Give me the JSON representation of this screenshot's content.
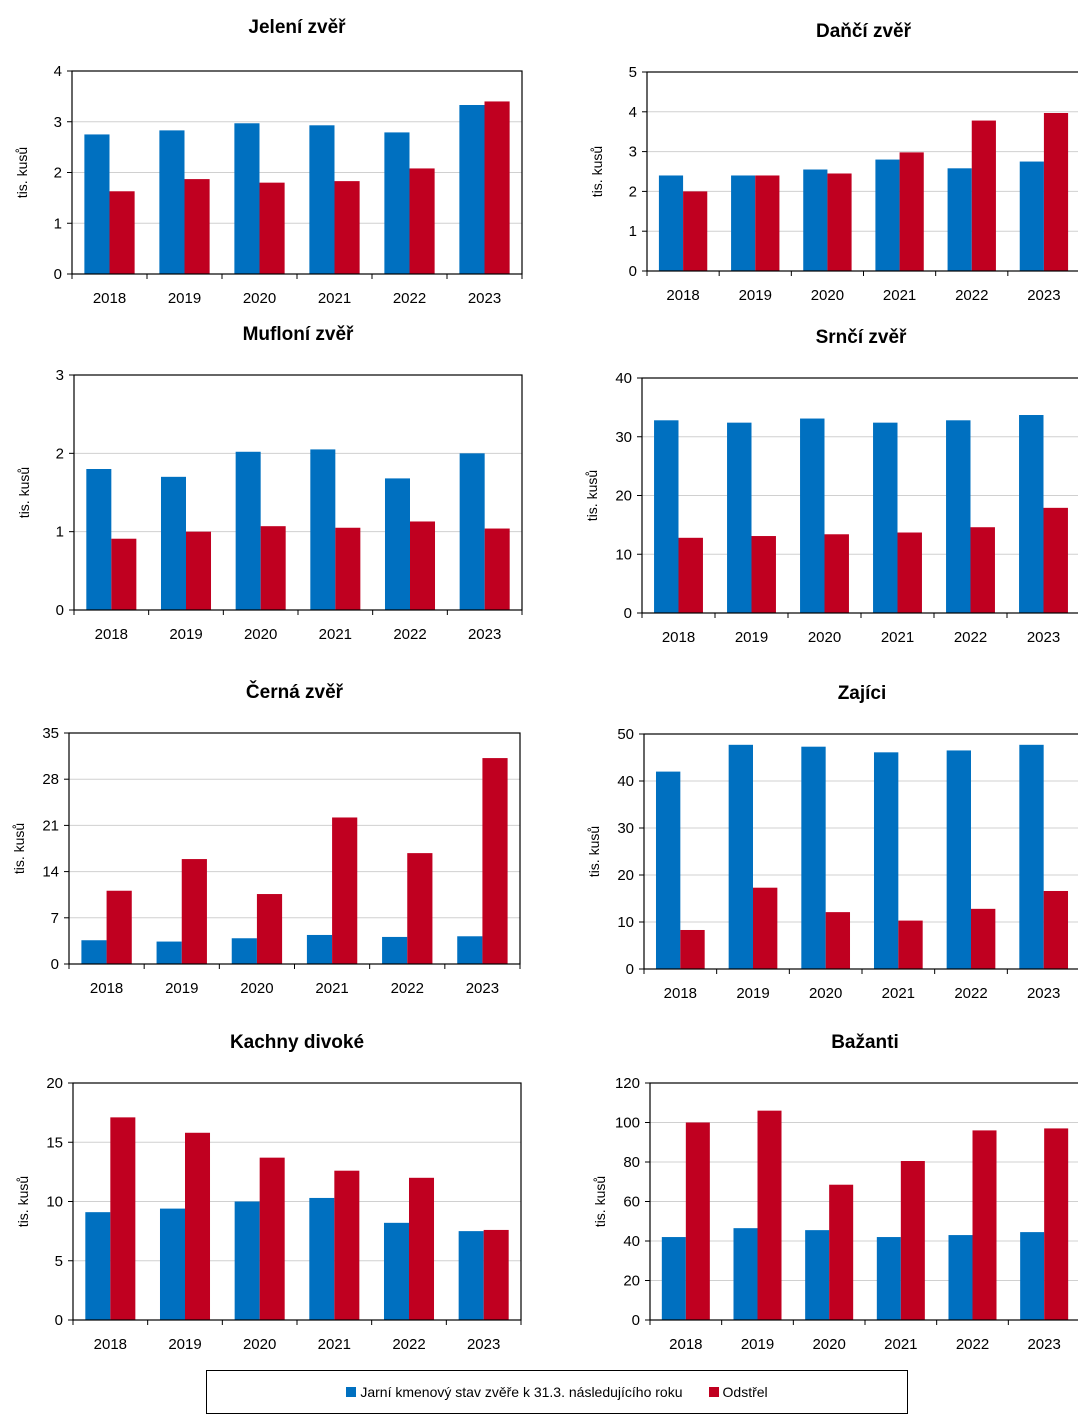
{
  "colors": {
    "series1": "#0070C0",
    "series2": "#C00020"
  },
  "legend": {
    "series1": "Jarní kmenový stav zvěře k 31.3. následujícího roku",
    "series2": "Odstřel"
  },
  "chart_data": [
    {
      "type": "bar",
      "title": "Jelení zvěř",
      "ylabel": "tis. kusů",
      "categories": [
        "2018",
        "2019",
        "2020",
        "2021",
        "2022",
        "2023"
      ],
      "ylim": [
        0,
        4
      ],
      "yticks": [
        0,
        1,
        2,
        3,
        4
      ],
      "series": [
        {
          "name": "Jarní kmenový stav zvěře k 31.3. následujícího roku",
          "values": [
            2.75,
            2.83,
            2.97,
            2.93,
            2.79,
            3.33
          ]
        },
        {
          "name": "Odstřel",
          "values": [
            1.63,
            1.87,
            1.8,
            1.83,
            2.08,
            3.4
          ]
        }
      ]
    },
    {
      "type": "bar",
      "title": "Daňčí zvěř",
      "ylabel": "tis. kusů",
      "categories": [
        "2018",
        "2019",
        "2020",
        "2021",
        "2022",
        "2023"
      ],
      "ylim": [
        0,
        5
      ],
      "yticks": [
        0,
        1,
        2,
        3,
        4,
        5
      ],
      "series": [
        {
          "name": "Jarní kmenový stav zvěře k 31.3. následujícího roku",
          "values": [
            2.4,
            2.4,
            2.55,
            2.8,
            2.58,
            2.75
          ]
        },
        {
          "name": "Odstřel",
          "values": [
            2.0,
            2.4,
            2.45,
            2.98,
            3.78,
            3.97
          ]
        }
      ]
    },
    {
      "type": "bar",
      "title": "Mufloní zvěř",
      "ylabel": "tis. kusů",
      "categories": [
        "2018",
        "2019",
        "2020",
        "2021",
        "2022",
        "2023"
      ],
      "ylim": [
        0,
        3
      ],
      "yticks": [
        0,
        1,
        2,
        3
      ],
      "series": [
        {
          "name": "Jarní kmenový stav zvěře k 31.3. následujícího roku",
          "values": [
            1.8,
            1.7,
            2.02,
            2.05,
            1.68,
            2.0
          ]
        },
        {
          "name": "Odstřel",
          "values": [
            0.91,
            1.0,
            1.07,
            1.05,
            1.13,
            1.04
          ]
        }
      ]
    },
    {
      "type": "bar",
      "title": "Srnčí zvěř",
      "ylabel": "tis. kusů",
      "categories": [
        "2018",
        "2019",
        "2020",
        "2021",
        "2022",
        "2023"
      ],
      "ylim": [
        0,
        40
      ],
      "yticks": [
        0,
        10,
        20,
        30,
        40
      ],
      "series": [
        {
          "name": "Jarní kmenový stav zvěře k 31.3. následujícího roku",
          "values": [
            32.8,
            32.4,
            33.1,
            32.4,
            32.8,
            33.7
          ]
        },
        {
          "name": "Odstřel",
          "values": [
            12.8,
            13.1,
            13.4,
            13.7,
            14.6,
            17.9
          ]
        }
      ]
    },
    {
      "type": "bar",
      "title": "Černá zvěř",
      "ylabel": "tis. kusů",
      "categories": [
        "2018",
        "2019",
        "2020",
        "2021",
        "2022",
        "2023"
      ],
      "ylim": [
        0,
        35
      ],
      "yticks": [
        0,
        7,
        14,
        21,
        28,
        35
      ],
      "series": [
        {
          "name": "Jarní kmenový stav zvěře k 31.3. následujícího roku",
          "values": [
            3.6,
            3.4,
            3.9,
            4.4,
            4.1,
            4.2
          ]
        },
        {
          "name": "Odstřel",
          "values": [
            11.1,
            15.9,
            10.6,
            22.2,
            16.8,
            31.2
          ]
        }
      ]
    },
    {
      "type": "bar",
      "title": "Zajíci",
      "ylabel": "tis. kusů",
      "categories": [
        "2018",
        "2019",
        "2020",
        "2021",
        "2022",
        "2023"
      ],
      "ylim": [
        0,
        50
      ],
      "yticks": [
        0,
        10,
        20,
        30,
        40,
        50
      ],
      "series": [
        {
          "name": "Jarní kmenový stav zvěře k 31.3. následujícího roku",
          "values": [
            42.0,
            47.7,
            47.3,
            46.1,
            46.5,
            47.7
          ]
        },
        {
          "name": "Odstřel",
          "values": [
            8.3,
            17.3,
            12.1,
            10.3,
            12.8,
            16.6
          ]
        }
      ]
    },
    {
      "type": "bar",
      "title": "Kachny divoké",
      "ylabel": "tis. kusů",
      "categories": [
        "2018",
        "2019",
        "2020",
        "2021",
        "2022",
        "2023"
      ],
      "ylim": [
        0,
        20
      ],
      "yticks": [
        0,
        5,
        10,
        15,
        20
      ],
      "series": [
        {
          "name": "Jarní kmenový stav zvěře k 31.3. následujícího roku",
          "values": [
            9.1,
            9.4,
            10.0,
            10.3,
            8.2,
            7.5
          ]
        },
        {
          "name": "Odstřel",
          "values": [
            17.1,
            15.8,
            13.7,
            12.6,
            12.0,
            7.6
          ]
        }
      ]
    },
    {
      "type": "bar",
      "title": "Bažanti",
      "ylabel": "tis. kusů",
      "categories": [
        "2018",
        "2019",
        "2020",
        "2021",
        "2022",
        "2023"
      ],
      "ylim": [
        0,
        120
      ],
      "yticks": [
        0,
        20,
        40,
        60,
        80,
        100,
        120
      ],
      "series": [
        {
          "name": "Jarní kmenový stav zvěře k 31.3. následujícího roku",
          "values": [
            42,
            46.5,
            45.5,
            42,
            43,
            44.5
          ]
        },
        {
          "name": "Odstřel",
          "values": [
            100,
            106,
            68.5,
            80.5,
            96,
            97
          ]
        }
      ]
    }
  ]
}
